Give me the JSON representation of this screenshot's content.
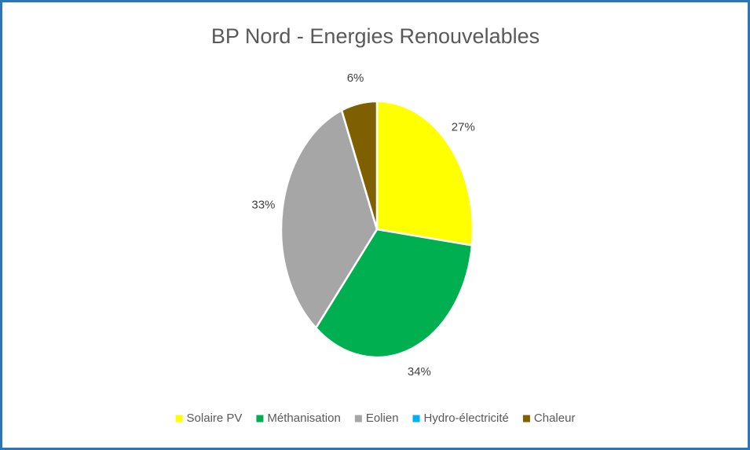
{
  "chart_data": {
    "type": "pie",
    "title": "BP Nord - Energies Renouvelables",
    "categories": [
      "Solaire PV",
      "Méthanisation",
      "Eolien",
      "Hydro-électricité",
      "Chaleur"
    ],
    "values": [
      27,
      34,
      33,
      0,
      6
    ],
    "value_labels": [
      "27%",
      "34%",
      "33%",
      null,
      "6%"
    ],
    "colors": [
      "#ffff00",
      "#00b050",
      "#a6a6a6",
      "#00b0f0",
      "#7f6000"
    ],
    "legend": "bottom"
  }
}
